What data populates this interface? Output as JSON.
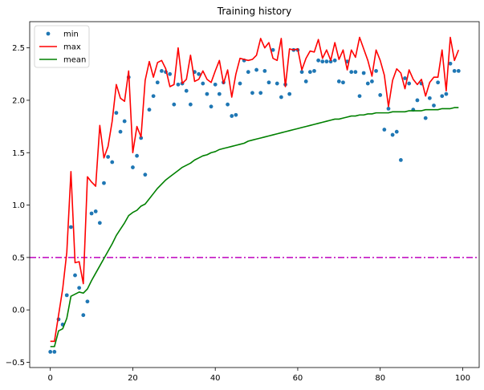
{
  "chart_data": {
    "type": "line",
    "title": "Training history",
    "xlabel": "",
    "ylabel": "",
    "xlim": [
      -5,
      104
    ],
    "ylim": [
      -0.55,
      2.75
    ],
    "xticks": [
      0,
      20,
      40,
      60,
      80,
      100
    ],
    "yticks": [
      -0.5,
      0.0,
      0.5,
      1.0,
      1.5,
      2.0,
      2.5
    ],
    "xtick_labels": [
      "0",
      "20",
      "40",
      "60",
      "80",
      "100"
    ],
    "ytick_labels": [
      "−0.5",
      "0.0",
      "0.5",
      "1.0",
      "1.5",
      "2.0",
      "2.5"
    ],
    "grid": false,
    "legend_position": "top-left",
    "hline": {
      "y": 0.5,
      "color": "#bf00bf",
      "style": "dash-dot"
    },
    "x": [
      0,
      1,
      2,
      3,
      4,
      5,
      6,
      7,
      8,
      9,
      10,
      11,
      12,
      13,
      14,
      15,
      16,
      17,
      18,
      19,
      20,
      21,
      22,
      23,
      24,
      25,
      26,
      27,
      28,
      29,
      30,
      31,
      32,
      33,
      34,
      35,
      36,
      37,
      38,
      39,
      40,
      41,
      42,
      43,
      44,
      45,
      46,
      47,
      48,
      49,
      50,
      51,
      52,
      53,
      54,
      55,
      56,
      57,
      58,
      59,
      60,
      61,
      62,
      63,
      64,
      65,
      66,
      67,
      68,
      69,
      70,
      71,
      72,
      73,
      74,
      75,
      76,
      77,
      78,
      79,
      80,
      81,
      82,
      83,
      84,
      85,
      86,
      87,
      88,
      89,
      90,
      91,
      92,
      93,
      94,
      95,
      96,
      97,
      98,
      99
    ],
    "series": [
      {
        "name": "min",
        "style": "points",
        "color": "#1f77b4",
        "values": [
          -0.4,
          -0.4,
          -0.09,
          -0.14,
          0.14,
          0.79,
          0.33,
          0.21,
          -0.05,
          0.08,
          0.92,
          0.94,
          0.83,
          1.21,
          1.46,
          1.41,
          1.88,
          1.7,
          1.8,
          2.22,
          1.36,
          1.47,
          1.64,
          1.29,
          1.91,
          2.04,
          2.17,
          2.28,
          2.27,
          2.25,
          1.96,
          2.15,
          2.16,
          2.09,
          1.96,
          2.27,
          2.25,
          2.16,
          2.06,
          1.94,
          2.15,
          2.06,
          2.17,
          1.96,
          1.85,
          1.86,
          2.16,
          2.38,
          2.27,
          2.07,
          2.29,
          2.07,
          2.28,
          2.17,
          2.48,
          2.16,
          2.03,
          2.15,
          2.06,
          2.48,
          2.48,
          2.27,
          2.18,
          2.27,
          2.28,
          2.38,
          2.37,
          2.37,
          2.37,
          2.38,
          2.18,
          2.17,
          2.37,
          2.27,
          2.27,
          2.04,
          2.26,
          2.16,
          2.18,
          2.28,
          2.05,
          1.72,
          1.92,
          1.67,
          1.7,
          1.43,
          2.21,
          2.16,
          1.91,
          2.0,
          2.16,
          1.83,
          2.02,
          1.95,
          2.17,
          2.04,
          2.06,
          2.35,
          2.28,
          2.28
        ]
      },
      {
        "name": "max",
        "style": "line",
        "color": "#ff0000",
        "values": [
          -0.3,
          -0.3,
          -0.05,
          0.2,
          0.55,
          1.32,
          0.45,
          0.46,
          0.25,
          1.27,
          1.22,
          1.18,
          1.76,
          1.45,
          1.56,
          1.8,
          2.15,
          2.02,
          1.99,
          2.28,
          1.5,
          1.75,
          1.65,
          2.19,
          2.37,
          2.22,
          2.36,
          2.38,
          2.3,
          2.13,
          2.15,
          2.5,
          2.16,
          2.2,
          2.43,
          2.18,
          2.2,
          2.28,
          2.2,
          2.17,
          2.28,
          2.38,
          2.16,
          2.29,
          2.03,
          2.25,
          2.4,
          2.39,
          2.38,
          2.39,
          2.43,
          2.59,
          2.5,
          2.55,
          2.4,
          2.38,
          2.59,
          2.13,
          2.49,
          2.48,
          2.49,
          2.29,
          2.4,
          2.47,
          2.46,
          2.58,
          2.4,
          2.48,
          2.38,
          2.55,
          2.39,
          2.48,
          2.29,
          2.48,
          2.41,
          2.6,
          2.49,
          2.38,
          2.23,
          2.48,
          2.38,
          2.24,
          1.94,
          2.19,
          2.3,
          2.26,
          2.11,
          2.29,
          2.2,
          2.15,
          2.2,
          2.04,
          2.17,
          2.22,
          2.22,
          2.48,
          2.09,
          2.6,
          2.38,
          2.48
        ]
      },
      {
        "name": "mean",
        "style": "line",
        "color": "#008000",
        "values": [
          -0.35,
          -0.35,
          -0.2,
          -0.18,
          -0.08,
          0.13,
          0.15,
          0.17,
          0.16,
          0.2,
          0.28,
          0.35,
          0.42,
          0.49,
          0.56,
          0.63,
          0.71,
          0.77,
          0.83,
          0.9,
          0.93,
          0.95,
          0.99,
          1.01,
          1.06,
          1.11,
          1.16,
          1.2,
          1.24,
          1.27,
          1.3,
          1.33,
          1.36,
          1.38,
          1.4,
          1.43,
          1.45,
          1.47,
          1.48,
          1.5,
          1.51,
          1.53,
          1.54,
          1.55,
          1.56,
          1.57,
          1.58,
          1.59,
          1.61,
          1.62,
          1.63,
          1.64,
          1.65,
          1.66,
          1.67,
          1.68,
          1.69,
          1.7,
          1.71,
          1.72,
          1.73,
          1.74,
          1.75,
          1.76,
          1.77,
          1.78,
          1.79,
          1.8,
          1.81,
          1.82,
          1.82,
          1.83,
          1.84,
          1.85,
          1.85,
          1.86,
          1.86,
          1.87,
          1.87,
          1.88,
          1.88,
          1.88,
          1.88,
          1.89,
          1.89,
          1.89,
          1.89,
          1.9,
          1.9,
          1.9,
          1.9,
          1.91,
          1.91,
          1.91,
          1.91,
          1.92,
          1.92,
          1.92,
          1.93,
          1.93
        ]
      }
    ]
  }
}
